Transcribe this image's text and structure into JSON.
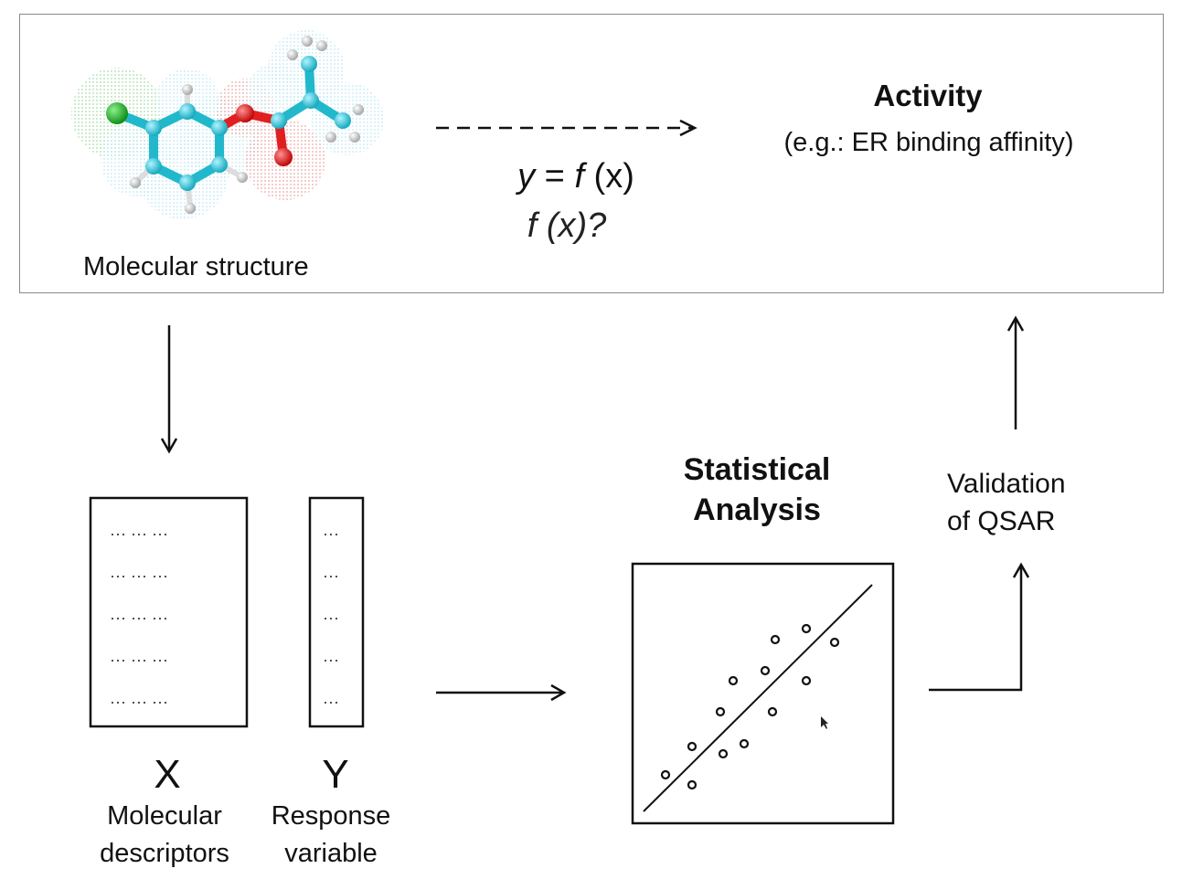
{
  "molecule": {
    "label": "Molecular structure"
  },
  "activity": {
    "title": "Activity",
    "subtitle": "(e.g.: ER binding affinity)"
  },
  "equation": {
    "line1_y": "y",
    "line1_eq": " = ",
    "line1_f": "f",
    "line1_x": " (x)",
    "line2": "f (x)?"
  },
  "statistics": {
    "title_line1": "Statistical",
    "title_line2": "Analysis"
  },
  "validation": {
    "line1": "Validation",
    "line2": "of QSAR"
  },
  "matrix_x": {
    "letter": "X",
    "label_line1": "Molecular",
    "label_line2": "descriptors"
  },
  "matrix_y": {
    "letter": "Y",
    "label_line1": "Response",
    "label_line2": "variable"
  },
  "colors": {
    "carbon": "#2bc4d8",
    "chlorine": "#1faa2a",
    "oxygen": "#e01010",
    "hydrogen": "#e6e6e6",
    "lines": "#111111"
  }
}
